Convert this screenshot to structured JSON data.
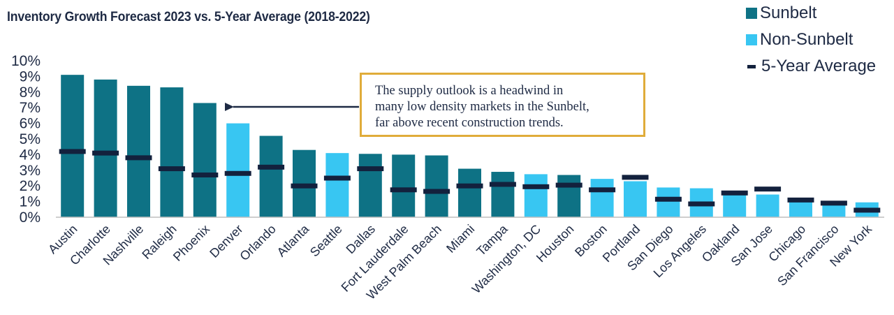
{
  "title": "Inventory Growth Forecast 2023 vs. 5-Year Average (2018-2022)",
  "legend": {
    "sunbelt": "Sunbelt",
    "non_sunbelt": "Non-Sunbelt",
    "avg": "5-Year Average"
  },
  "annotation": {
    "lines": [
      "The supply outlook is a headwind in",
      "many low density markets in the Sunbelt,",
      "far above recent construction trends."
    ]
  },
  "colors": {
    "sunbelt": "#0e7285",
    "non_sunbelt": "#38c6f2",
    "avg": "#13213d",
    "callout_border": "#e0ac3a",
    "text": "#1e2a44"
  },
  "chart_data": {
    "type": "bar",
    "title": "Inventory Growth Forecast 2023 vs. 5-Year Average (2018-2022)",
    "ylim": [
      0,
      10
    ],
    "yticks": [
      "0%",
      "1%",
      "2%",
      "3%",
      "4%",
      "5%",
      "6%",
      "7%",
      "8%",
      "9%",
      "10%"
    ],
    "categories": [
      "Austin",
      "Charlotte",
      "Nashville",
      "Raleigh",
      "Phoenix",
      "Denver",
      "Orlando",
      "Atlanta",
      "Seattle",
      "Dallas",
      "Fort Lauderdale",
      "West Palm Beach",
      "Miami",
      "Tampa",
      "Washington, DC",
      "Houston",
      "Boston",
      "Portland",
      "San Diego",
      "Los Angeles",
      "Oakland",
      "San Jose",
      "Chicago",
      "San Francisco",
      "New York"
    ],
    "group": [
      "Sunbelt",
      "Sunbelt",
      "Sunbelt",
      "Sunbelt",
      "Sunbelt",
      "Non-Sunbelt",
      "Sunbelt",
      "Sunbelt",
      "Non-Sunbelt",
      "Sunbelt",
      "Sunbelt",
      "Sunbelt",
      "Sunbelt",
      "Sunbelt",
      "Non-Sunbelt",
      "Sunbelt",
      "Non-Sunbelt",
      "Non-Sunbelt",
      "Non-Sunbelt",
      "Non-Sunbelt",
      "Non-Sunbelt",
      "Non-Sunbelt",
      "Non-Sunbelt",
      "Non-Sunbelt",
      "Non-Sunbelt"
    ],
    "series": [
      {
        "name": "Forecast 2023",
        "values": [
          9.1,
          8.8,
          8.4,
          8.3,
          7.3,
          6.0,
          5.2,
          4.3,
          4.1,
          4.05,
          4.0,
          3.95,
          3.1,
          2.9,
          2.75,
          2.7,
          2.45,
          2.3,
          1.9,
          1.85,
          1.6,
          1.45,
          1.1,
          1.0,
          0.95
        ]
      },
      {
        "name": "5-Year Average",
        "values": [
          4.2,
          4.1,
          3.8,
          3.1,
          2.7,
          2.8,
          3.2,
          2.0,
          2.5,
          3.1,
          1.75,
          1.65,
          2.0,
          2.1,
          1.95,
          2.05,
          1.75,
          2.55,
          1.15,
          0.85,
          1.55,
          1.8,
          1.1,
          0.9,
          0.45
        ]
      }
    ],
    "legend_position": "top-right",
    "grid": false
  }
}
